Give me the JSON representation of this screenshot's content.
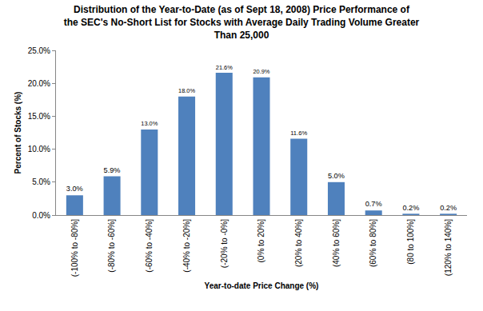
{
  "chart_data": {
    "type": "bar",
    "title": "Distribution of the Year-to-Date (as of Sept 18, 2008) Price Performance of the SEC's No-Short List for Stocks with Average Daily Trading Volume Greater Than 25,000",
    "x_label": "Year-to-date Price Change (%)",
    "y_label": "Percent of Stocks (%)",
    "categories": [
      "(-100% to -80%]",
      "(-80% to -60%]",
      "(-60% to -40%]",
      "(-40% to -20%]",
      "(-20% to -0%]",
      "(0% to 20%]",
      "(20% to 40%]",
      "(40% to 60%]",
      "(60% to 80%]",
      "(80 to 100%]",
      "(120% to 140%]"
    ],
    "values": [
      3.0,
      5.9,
      13.0,
      18.0,
      21.6,
      20.9,
      11.6,
      5.0,
      0.7,
      0.2,
      0.2
    ],
    "value_labels": [
      "3.0%",
      "5.9%",
      "13.0%",
      "18.0%",
      "21.6%",
      "20.9%",
      "11.6%",
      "5.0%",
      "0.7%",
      "0.2%",
      "0.2%"
    ],
    "data_labels": true,
    "color": "#4f81bd",
    "ylim": [
      0,
      25
    ],
    "yticks": [
      {
        "value": 0,
        "label": "0.0%"
      },
      {
        "value": 5,
        "label": "5.0%"
      },
      {
        "value": 10,
        "label": "10.0%"
      },
      {
        "value": 15,
        "label": "15.0%"
      },
      {
        "value": 20,
        "label": "20.0%"
      },
      {
        "value": 25,
        "label": "25.0%"
      }
    ],
    "grid": false
  }
}
